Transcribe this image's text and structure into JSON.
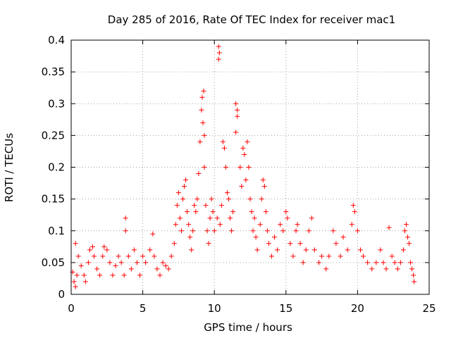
{
  "chart_data": {
    "type": "scatter",
    "title": "Day 285 of 2016, Rate Of TEC Index for receiver mac1",
    "xlabel": "GPS time / hours",
    "ylabel": "ROTI / TECUs",
    "xlim": [
      0,
      25
    ],
    "ylim": [
      0,
      0.4
    ],
    "xticks": [
      0,
      5,
      10,
      15,
      20,
      25
    ],
    "xtick_labels": [
      "0",
      "5",
      "10",
      "15",
      "20",
      "25"
    ],
    "yticks": [
      0,
      0.05,
      0.1,
      0.15,
      0.2,
      0.25,
      0.3,
      0.35,
      0.4
    ],
    "ytick_labels": [
      "0",
      "0.05",
      "0.1",
      "0.15",
      "0.2",
      "0.25",
      "0.3",
      "0.35",
      "0.4"
    ],
    "grid": true,
    "marker": "+",
    "color": "#ff0000",
    "series": [
      {
        "name": "ROTI",
        "points": [
          [
            0.1,
            0.035
          ],
          [
            0.2,
            0.02
          ],
          [
            0.3,
            0.012
          ],
          [
            0.4,
            0.03
          ],
          [
            0.3,
            0.08
          ],
          [
            0.5,
            0.06
          ],
          [
            0.7,
            0.045
          ],
          [
            0.9,
            0.03
          ],
          [
            1.0,
            0.02
          ],
          [
            1.2,
            0.05
          ],
          [
            1.3,
            0.07
          ],
          [
            1.5,
            0.075
          ],
          [
            1.6,
            0.06
          ],
          [
            1.8,
            0.04
          ],
          [
            2.0,
            0.03
          ],
          [
            2.2,
            0.06
          ],
          [
            2.3,
            0.075
          ],
          [
            2.5,
            0.07
          ],
          [
            2.7,
            0.05
          ],
          [
            2.9,
            0.03
          ],
          [
            3.1,
            0.045
          ],
          [
            3.3,
            0.06
          ],
          [
            3.5,
            0.05
          ],
          [
            3.7,
            0.03
          ],
          [
            3.8,
            0.12
          ],
          [
            3.8,
            0.1
          ],
          [
            4.0,
            0.06
          ],
          [
            4.2,
            0.04
          ],
          [
            4.4,
            0.07
          ],
          [
            4.6,
            0.05
          ],
          [
            4.8,
            0.03
          ],
          [
            5.0,
            0.06
          ],
          [
            5.2,
            0.05
          ],
          [
            5.5,
            0.07
          ],
          [
            5.7,
            0.095
          ],
          [
            5.8,
            0.06
          ],
          [
            6.0,
            0.04
          ],
          [
            6.2,
            0.03
          ],
          [
            6.4,
            0.05
          ],
          [
            6.6,
            0.045
          ],
          [
            6.8,
            0.04
          ],
          [
            7.0,
            0.06
          ],
          [
            7.2,
            0.08
          ],
          [
            7.3,
            0.11
          ],
          [
            7.4,
            0.14
          ],
          [
            7.5,
            0.16
          ],
          [
            7.6,
            0.12
          ],
          [
            7.7,
            0.1
          ],
          [
            7.8,
            0.15
          ],
          [
            7.9,
            0.17
          ],
          [
            8.0,
            0.18
          ],
          [
            8.1,
            0.13
          ],
          [
            8.2,
            0.11
          ],
          [
            8.3,
            0.09
          ],
          [
            8.4,
            0.07
          ],
          [
            8.5,
            0.1
          ],
          [
            8.6,
            0.14
          ],
          [
            8.7,
            0.13
          ],
          [
            8.8,
            0.15
          ],
          [
            8.9,
            0.19
          ],
          [
            9.0,
            0.24
          ],
          [
            9.1,
            0.29
          ],
          [
            9.15,
            0.31
          ],
          [
            9.2,
            0.27
          ],
          [
            9.25,
            0.32
          ],
          [
            9.3,
            0.25
          ],
          [
            9.3,
            0.2
          ],
          [
            9.4,
            0.14
          ],
          [
            9.5,
            0.1
          ],
          [
            9.6,
            0.08
          ],
          [
            9.7,
            0.12
          ],
          [
            9.8,
            0.15
          ],
          [
            9.9,
            0.13
          ],
          [
            10.0,
            0.1
          ],
          [
            10.2,
            0.12
          ],
          [
            10.3,
            0.39
          ],
          [
            10.35,
            0.38
          ],
          [
            10.3,
            0.37
          ],
          [
            10.4,
            0.11
          ],
          [
            10.5,
            0.14
          ],
          [
            10.6,
            0.24
          ],
          [
            10.7,
            0.23
          ],
          [
            10.8,
            0.2
          ],
          [
            10.9,
            0.16
          ],
          [
            11.0,
            0.15
          ],
          [
            11.1,
            0.12
          ],
          [
            11.2,
            0.1
          ],
          [
            11.3,
            0.13
          ],
          [
            11.5,
            0.3
          ],
          [
            11.6,
            0.29
          ],
          [
            11.5,
            0.255
          ],
          [
            11.6,
            0.28
          ],
          [
            11.8,
            0.2
          ],
          [
            11.9,
            0.17
          ],
          [
            12.0,
            0.23
          ],
          [
            12.1,
            0.22
          ],
          [
            12.2,
            0.18
          ],
          [
            12.3,
            0.24
          ],
          [
            12.4,
            0.2
          ],
          [
            12.5,
            0.15
          ],
          [
            12.6,
            0.13
          ],
          [
            12.7,
            0.1
          ],
          [
            12.8,
            0.12
          ],
          [
            12.9,
            0.09
          ],
          [
            13.0,
            0.07
          ],
          [
            13.2,
            0.11
          ],
          [
            13.3,
            0.15
          ],
          [
            13.4,
            0.18
          ],
          [
            13.5,
            0.17
          ],
          [
            13.6,
            0.13
          ],
          [
            13.7,
            0.1
          ],
          [
            13.8,
            0.08
          ],
          [
            14.0,
            0.06
          ],
          [
            14.2,
            0.09
          ],
          [
            14.4,
            0.07
          ],
          [
            14.6,
            0.11
          ],
          [
            14.8,
            0.1
          ],
          [
            15.0,
            0.13
          ],
          [
            15.1,
            0.12
          ],
          [
            15.3,
            0.08
          ],
          [
            15.5,
            0.06
          ],
          [
            15.7,
            0.1
          ],
          [
            15.8,
            0.11
          ],
          [
            16.0,
            0.08
          ],
          [
            16.2,
            0.05
          ],
          [
            16.4,
            0.07
          ],
          [
            16.6,
            0.1
          ],
          [
            16.8,
            0.12
          ],
          [
            17.0,
            0.07
          ],
          [
            17.3,
            0.05
          ],
          [
            17.5,
            0.06
          ],
          [
            17.8,
            0.04
          ],
          [
            18.0,
            0.06
          ],
          [
            18.3,
            0.1
          ],
          [
            18.5,
            0.08
          ],
          [
            18.8,
            0.06
          ],
          [
            19.0,
            0.09
          ],
          [
            19.3,
            0.07
          ],
          [
            19.6,
            0.11
          ],
          [
            19.7,
            0.14
          ],
          [
            19.8,
            0.13
          ],
          [
            20.0,
            0.1
          ],
          [
            20.2,
            0.07
          ],
          [
            20.4,
            0.06
          ],
          [
            20.7,
            0.05
          ],
          [
            21.0,
            0.04
          ],
          [
            21.3,
            0.05
          ],
          [
            21.6,
            0.07
          ],
          [
            21.8,
            0.05
          ],
          [
            22.0,
            0.04
          ],
          [
            22.2,
            0.105
          ],
          [
            22.4,
            0.06
          ],
          [
            22.6,
            0.05
          ],
          [
            22.8,
            0.04
          ],
          [
            23.0,
            0.05
          ],
          [
            23.2,
            0.07
          ],
          [
            23.3,
            0.1
          ],
          [
            23.4,
            0.11
          ],
          [
            23.5,
            0.09
          ],
          [
            23.6,
            0.08
          ],
          [
            23.7,
            0.05
          ],
          [
            23.8,
            0.04
          ],
          [
            23.9,
            0.03
          ],
          [
            23.95,
            0.02
          ]
        ]
      }
    ]
  }
}
